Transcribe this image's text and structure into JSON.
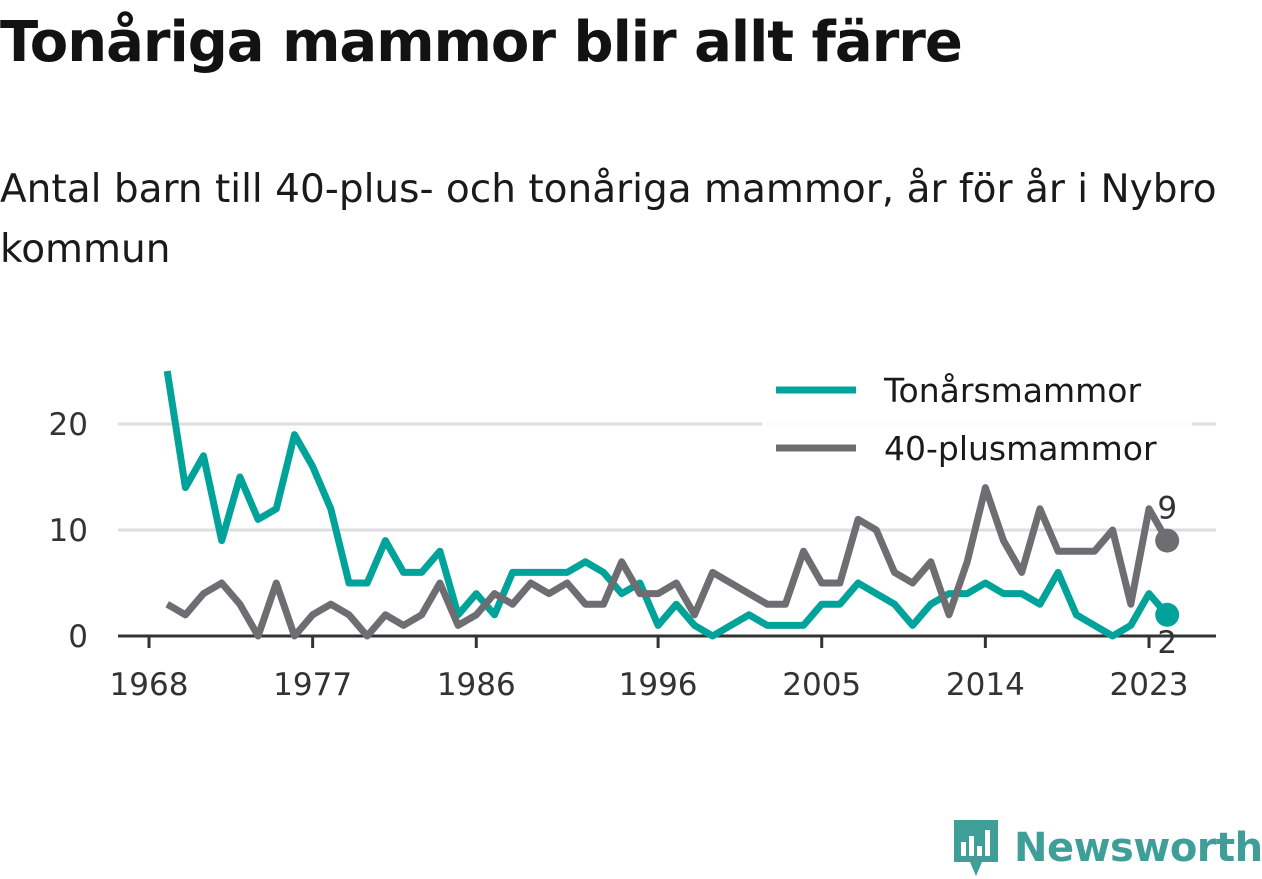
{
  "title": "Tonåriga mammor blir allt färre",
  "subtitle": "Antal barn till 40-plus- och tonåriga mammor, år för år i Nybro kommun",
  "brand": {
    "name": "Newsworthy",
    "color": "#3f9e98"
  },
  "chart_data": {
    "type": "line",
    "title": "Tonåriga mammor blir allt färre",
    "xlabel": "",
    "ylabel": "",
    "x_ticks": [
      "1968",
      "1977",
      "1986",
      "1996",
      "2005",
      "2014",
      "2023"
    ],
    "y_ticks": [
      "0",
      "10",
      "20"
    ],
    "ylim": [
      0,
      25
    ],
    "xlim": [
      1968,
      2025
    ],
    "grid": "horizontal",
    "legend_position": "top-right",
    "x": [
      1969,
      1970,
      1971,
      1972,
      1973,
      1974,
      1975,
      1976,
      1977,
      1978,
      1979,
      1980,
      1981,
      1982,
      1983,
      1984,
      1985,
      1986,
      1987,
      1988,
      1989,
      1990,
      1991,
      1992,
      1993,
      1994,
      1995,
      1996,
      1997,
      1998,
      1999,
      2000,
      2001,
      2002,
      2003,
      2004,
      2005,
      2006,
      2007,
      2008,
      2009,
      2010,
      2011,
      2012,
      2013,
      2014,
      2015,
      2016,
      2017,
      2018,
      2019,
      2020,
      2021,
      2022,
      2023,
      2024
    ],
    "series": [
      {
        "name": "Tonårsmammor",
        "color": "#00a399",
        "values": [
          25,
          14,
          17,
          9,
          15,
          11,
          12,
          19,
          16,
          12,
          5,
          5,
          9,
          6,
          6,
          8,
          2,
          4,
          2,
          6,
          6,
          6,
          6,
          7,
          6,
          4,
          5,
          1,
          3,
          1,
          0,
          1,
          2,
          1,
          1,
          1,
          3,
          3,
          5,
          4,
          3,
          1,
          3,
          4,
          4,
          5,
          4,
          4,
          3,
          6,
          2,
          1,
          0,
          1,
          4,
          2
        ],
        "end_label": "2"
      },
      {
        "name": "40-plusmammor",
        "color": "#6e6e72",
        "values": [
          3,
          2,
          4,
          5,
          3,
          0,
          5,
          0,
          2,
          3,
          2,
          0,
          2,
          1,
          2,
          5,
          1,
          2,
          4,
          3,
          5,
          4,
          5,
          3,
          3,
          7,
          4,
          4,
          5,
          2,
          6,
          5,
          4,
          3,
          3,
          8,
          5,
          5,
          11,
          10,
          6,
          5,
          7,
          2,
          7,
          14,
          9,
          6,
          12,
          8,
          8,
          8,
          10,
          3,
          12,
          9
        ],
        "end_label": "9"
      }
    ]
  }
}
